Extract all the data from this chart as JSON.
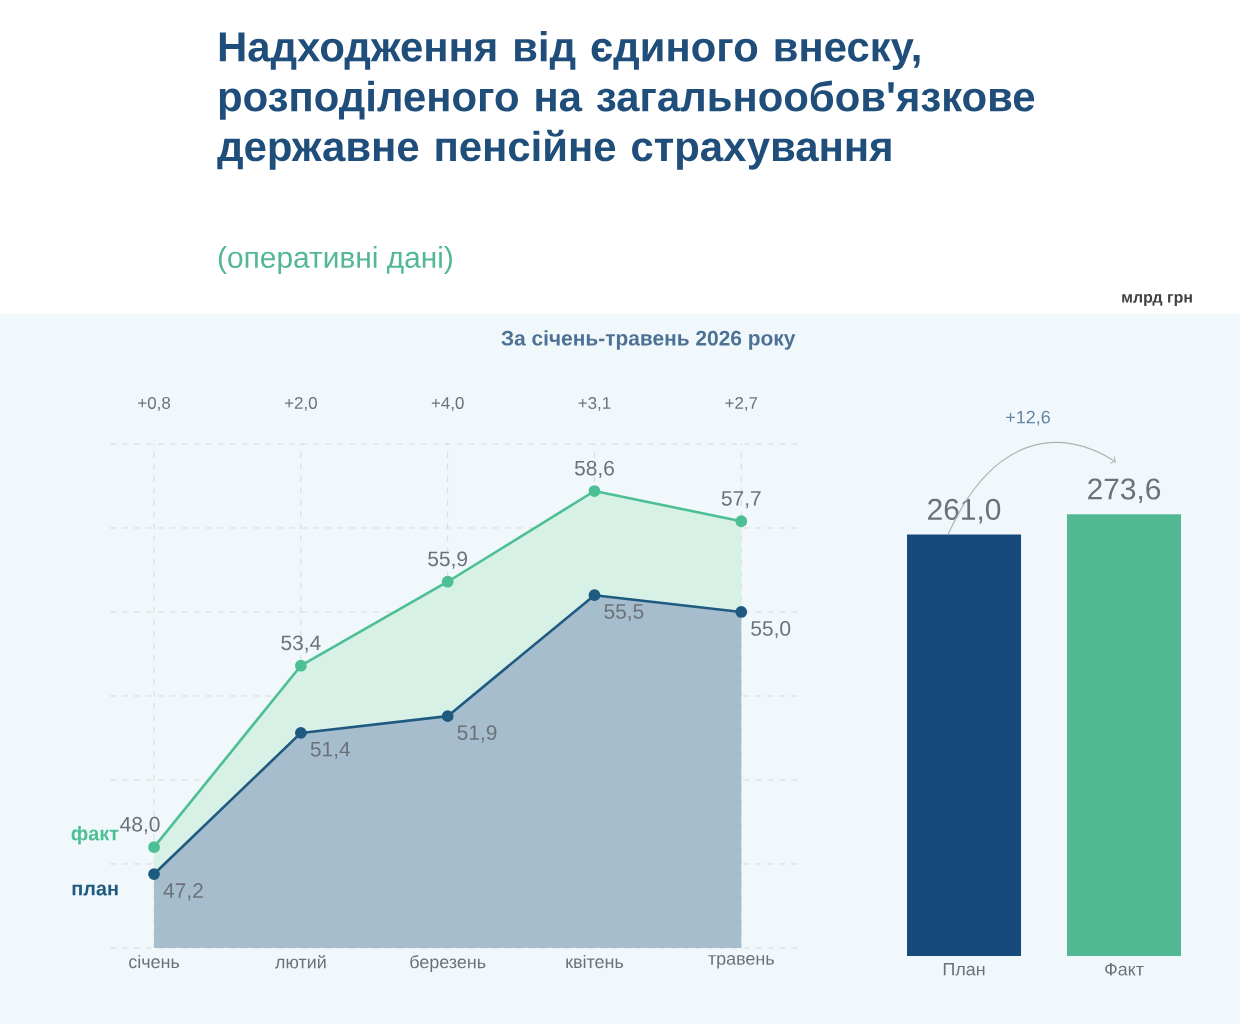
{
  "chart_data": [
    {
      "type": "area",
      "title": "Надходження від єдиного внеску, розподіленого на загальнообов'язкове державне пенсійне страхування",
      "subtitle": "(оперативні дані)",
      "categories": [
        "січень",
        "лютий",
        "березень",
        "квітень",
        "травень"
      ],
      "series": [
        {
          "name": "факт",
          "color": "#4dbf94",
          "values": [
            48.0,
            53.4,
            55.9,
            58.6,
            57.7
          ],
          "value_labels": [
            "48,0",
            "53,4",
            "55,9",
            "58,6",
            "57,7"
          ]
        },
        {
          "name": "план",
          "color": "#1f5a80",
          "values": [
            47.2,
            51.4,
            51.9,
            55.5,
            55.0
          ],
          "value_labels": [
            "47,2",
            "51,4",
            "51,9",
            "55,5",
            "55,0"
          ]
        }
      ],
      "ylim": [
        45,
        60
      ],
      "yticks": [
        {
          "value": 45,
          "label": null
        },
        {
          "value": 47.5,
          "label": null
        },
        {
          "value": 50,
          "label": null
        },
        {
          "value": 52.5,
          "label": null
        },
        {
          "value": 55,
          "label": null
        },
        {
          "value": 57.5,
          "label": null
        },
        {
          "value": 60,
          "label": null
        }
      ],
      "grid": true,
      "marker": "circle",
      "tick_labels": "x",
      "annotations": [
        "За січень-травень 2026 року",
        "млрд грн",
        "+0,8",
        "+2,0",
        "+4,0",
        "+3,1",
        "+2,7"
      ]
    },
    {
      "type": "bar",
      "categories": [
        "План",
        "Факт"
      ],
      "values": [
        261.0,
        273.6
      ],
      "value_labels": [
        "261,0",
        "273,6"
      ],
      "colors": [
        "#174a7c",
        "#52b893"
      ],
      "tick_labels": "x",
      "annotations": [
        "+12,6"
      ]
    }
  ]
}
